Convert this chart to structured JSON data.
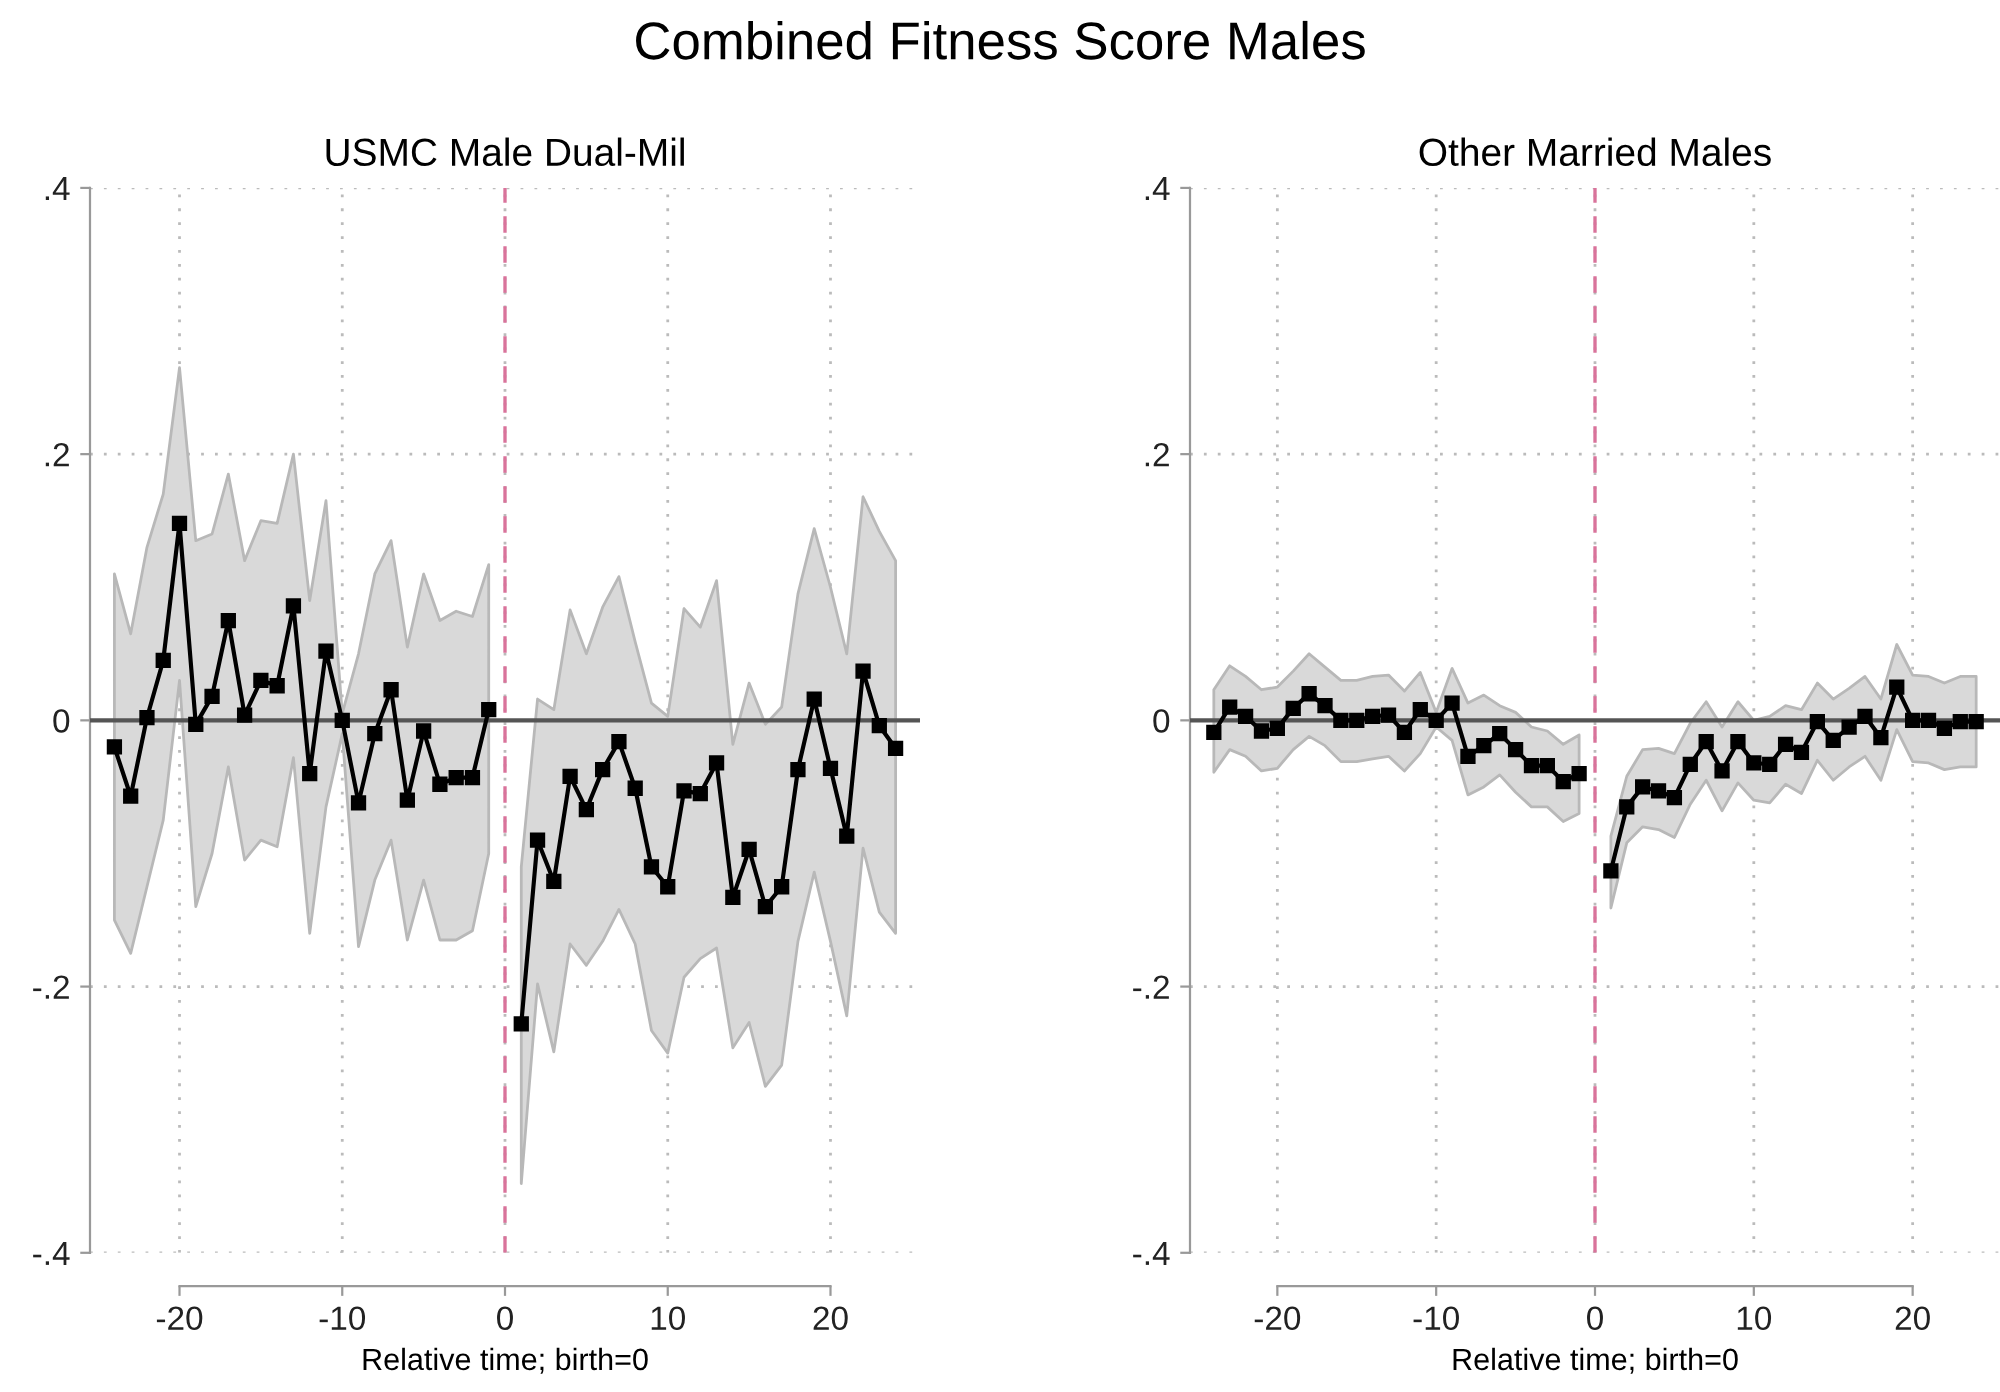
{
  "chart_data": [
    {
      "type": "line",
      "title": "USMC Male Dual-Mil",
      "xlabel": "Relative time; birth=0",
      "annotations": [
        "Combined Fitness Score Males"
      ],
      "xlim": [
        -25.5,
        25.5
      ],
      "xticks": [
        -20,
        -10,
        0,
        10,
        20
      ],
      "ylim": [
        -0.4,
        0.4
      ],
      "yticks": [
        {
          "value": -0.4,
          "label": "-.4"
        },
        {
          "value": -0.2,
          "label": "-.2"
        },
        0,
        {
          "value": 0.2,
          "label": ".2"
        },
        {
          "value": 0.4,
          "label": ".4"
        }
      ],
      "grid": true,
      "marker": "square",
      "line_style": "solid",
      "ref_lines": [
        {
          "axis": "y",
          "value": 0,
          "color": "#555555",
          "line_style": "solid"
        },
        {
          "axis": "x",
          "value": 0,
          "color": "#d9739b",
          "line_style": "dashed"
        }
      ],
      "series": [
        {
          "color": "#000000",
          "x": [
            -24,
            -23,
            -22,
            -21,
            -20,
            -19,
            -18,
            -17,
            -16,
            -15,
            -14,
            -13,
            -12,
            -11,
            -10,
            -9,
            -8,
            -7,
            -6,
            -5,
            -4,
            -3,
            -2,
            -1
          ],
          "values": [
            -0.02,
            -0.057,
            0.002,
            0.045,
            0.148,
            -0.003,
            0.018,
            0.075,
            0.004,
            0.03,
            0.026,
            0.086,
            -0.04,
            0.052,
            0,
            -0.062,
            -0.01,
            0.023,
            -0.06,
            -0.008,
            -0.048,
            -0.043,
            -0.043,
            0.008
          ],
          "upper": [
            0.11,
            0.065,
            0.13,
            0.17,
            0.265,
            0.135,
            0.14,
            0.185,
            0.12,
            0.15,
            0.148,
            0.2,
            0.09,
            0.165,
            0.005,
            0.05,
            0.11,
            0.135,
            0.055,
            0.11,
            0.075,
            0.082,
            0.078,
            0.117
          ],
          "lower": [
            -0.15,
            -0.175,
            -0.125,
            -0.075,
            0.03,
            -0.14,
            -0.1,
            -0.035,
            -0.105,
            -0.09,
            -0.095,
            -0.028,
            -0.16,
            -0.065,
            -0.01,
            -0.17,
            -0.12,
            -0.09,
            -0.165,
            -0.12,
            -0.165,
            -0.165,
            -0.158,
            -0.1
          ]
        },
        {
          "color": "#000000",
          "x": [
            1,
            2,
            3,
            4,
            5,
            6,
            7,
            8,
            9,
            10,
            11,
            12,
            13,
            14,
            15,
            16,
            17,
            18,
            19,
            20,
            21,
            22,
            23,
            24
          ],
          "values": [
            -0.228,
            -0.09,
            -0.121,
            -0.042,
            -0.067,
            -0.037,
            -0.016,
            -0.051,
            -0.11,
            -0.125,
            -0.053,
            -0.055,
            -0.032,
            -0.133,
            -0.097,
            -0.14,
            -0.125,
            -0.037,
            0.016,
            -0.036,
            -0.087,
            0.037,
            -0.004,
            -0.021
          ],
          "upper": [
            -0.11,
            0.016,
            0.008,
            0.083,
            0.05,
            0.085,
            0.108,
            0.059,
            0.013,
            0.003,
            0.084,
            0.07,
            0.105,
            -0.018,
            0.028,
            -0.003,
            0.01,
            0.095,
            0.144,
            0.1,
            0.05,
            0.168,
            0.142,
            0.12
          ],
          "lower": [
            -0.348,
            -0.198,
            -0.249,
            -0.168,
            -0.184,
            -0.166,
            -0.142,
            -0.168,
            -0.233,
            -0.25,
            -0.193,
            -0.179,
            -0.171,
            -0.246,
            -0.227,
            -0.275,
            -0.259,
            -0.166,
            -0.114,
            -0.166,
            -0.222,
            -0.096,
            -0.144,
            -0.16
          ]
        }
      ]
    },
    {
      "type": "line",
      "title": "Other Married Males",
      "xlabel": "Relative time; birth=0",
      "xlim": [
        -25.5,
        25.5
      ],
      "xticks": [
        -20,
        -10,
        0,
        10,
        20
      ],
      "ylim": [
        -0.4,
        0.4
      ],
      "yticks": [
        {
          "value": -0.4,
          "label": "-.4"
        },
        {
          "value": -0.2,
          "label": "-.2"
        },
        0,
        {
          "value": 0.2,
          "label": ".2"
        },
        {
          "value": 0.4,
          "label": ".4"
        }
      ],
      "grid": true,
      "marker": "square",
      "line_style": "solid",
      "ref_lines": [
        {
          "axis": "y",
          "value": 0,
          "color": "#555555",
          "line_style": "solid"
        },
        {
          "axis": "x",
          "value": 0,
          "color": "#d9739b",
          "line_style": "dashed"
        }
      ],
      "series": [
        {
          "color": "#000000",
          "x": [
            -24,
            -23,
            -22,
            -21,
            -20,
            -19,
            -18,
            -17,
            -16,
            -15,
            -14,
            -13,
            -12,
            -11,
            -10,
            -9,
            -8,
            -7,
            -6,
            -5,
            -4,
            -3,
            -2,
            -1
          ],
          "values": [
            -0.009,
            0.01,
            0.003,
            -0.008,
            -0.006,
            0.009,
            0.02,
            0.011,
            0,
            0,
            0.003,
            0.004,
            -0.009,
            0.008,
            0,
            0.013,
            -0.027,
            -0.019,
            -0.01,
            -0.022,
            -0.034,
            -0.034,
            -0.046,
            -0.04
          ],
          "upper": [
            0.023,
            0.041,
            0.033,
            0.023,
            0.025,
            0.037,
            0.05,
            0.04,
            0.03,
            0.03,
            0.033,
            0.034,
            0.022,
            0.036,
            0.006,
            0.039,
            0.013,
            0.019,
            0.011,
            0.006,
            -0.005,
            -0.008,
            -0.018,
            -0.011
          ],
          "lower": [
            -0.039,
            -0.022,
            -0.027,
            -0.038,
            -0.036,
            -0.022,
            -0.012,
            -0.019,
            -0.031,
            -0.031,
            -0.029,
            -0.027,
            -0.038,
            -0.025,
            -0.005,
            -0.015,
            -0.056,
            -0.05,
            -0.041,
            -0.054,
            -0.065,
            -0.065,
            -0.076,
            -0.07
          ]
        },
        {
          "color": "#000000",
          "x": [
            1,
            2,
            3,
            4,
            5,
            6,
            7,
            8,
            9,
            10,
            11,
            12,
            13,
            14,
            15,
            16,
            17,
            18,
            19,
            20,
            21,
            22,
            23,
            24
          ],
          "values": [
            -0.113,
            -0.065,
            -0.05,
            -0.053,
            -0.058,
            -0.033,
            -0.016,
            -0.038,
            -0.016,
            -0.032,
            -0.033,
            -0.018,
            -0.024,
            -0.001,
            -0.015,
            -0.005,
            0.003,
            -0.013,
            0.025,
            0,
            0,
            -0.006,
            -0.001,
            -0.001
          ],
          "upper": [
            -0.087,
            -0.042,
            -0.022,
            -0.021,
            -0.025,
            -0.002,
            0.014,
            -0.005,
            0.014,
            0,
            0.003,
            0.011,
            0.008,
            0.028,
            0.016,
            0.024,
            0.033,
            0.016,
            0.057,
            0.034,
            0.033,
            0.028,
            0.033,
            0.033
          ],
          "lower": [
            -0.141,
            -0.092,
            -0.08,
            -0.082,
            -0.088,
            -0.063,
            -0.045,
            -0.068,
            -0.047,
            -0.06,
            -0.062,
            -0.048,
            -0.055,
            -0.03,
            -0.045,
            -0.035,
            -0.027,
            -0.045,
            -0.007,
            -0.031,
            -0.032,
            -0.037,
            -0.035,
            -0.035
          ]
        }
      ]
    }
  ]
}
